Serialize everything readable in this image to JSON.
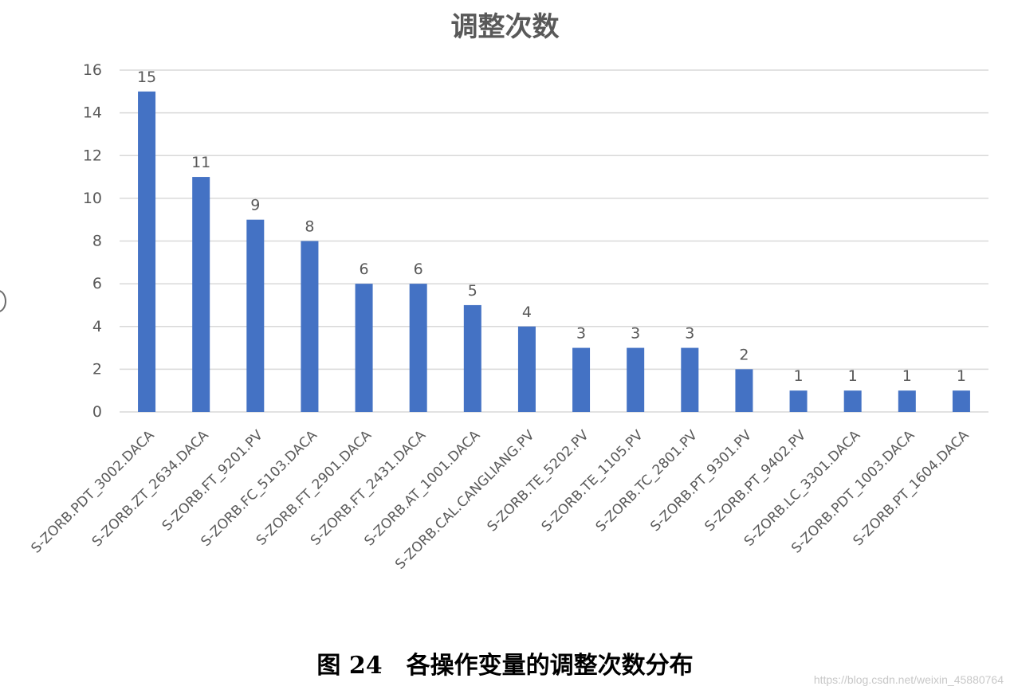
{
  "chart_data": {
    "type": "bar",
    "title": "调整次数",
    "xlabel": "",
    "ylabel": "",
    "categories": [
      "S-ZORB.PDT_3002.DACA",
      "S-ZORB.ZT_2634.DACA",
      "S-ZORB.FT_9201.PV",
      "S-ZORB.FC_5103.DACA",
      "S-ZORB.FT_2901.DACA",
      "S-ZORB.FT_2431.DACA",
      "S-ZORB.AT_1001.DACA",
      "S-ZORB.CAL.CANGLIANG.PV",
      "S-ZORB.TE_5202.PV",
      "S-ZORB.TE_1105.PV",
      "S-ZORB.TC_2801.PV",
      "S-ZORB.PT_9301.PV",
      "S-ZORB.PT_9402.PV",
      "S-ZORB.LC_3301.DACA",
      "S-ZORB.PDT_1003.DACA",
      "S-ZORB.PT_1604.DACA"
    ],
    "values": [
      15,
      11,
      9,
      8,
      6,
      6,
      5,
      4,
      3,
      3,
      3,
      2,
      1,
      1,
      1,
      1
    ],
    "ylim": [
      0,
      16
    ],
    "yticks": [
      0,
      2,
      4,
      6,
      8,
      10,
      12,
      14,
      16
    ],
    "grid": true,
    "legend": "none",
    "data_labels": true,
    "bar_color": "#4472c4",
    "grid_color": "#d9d9d9",
    "text_color": "#595959"
  },
  "caption": {
    "figure_number": "图 24",
    "text": "各操作变量的调整次数分布"
  },
  "watermark": "https://blog.csdn.net/weixin_45880764"
}
